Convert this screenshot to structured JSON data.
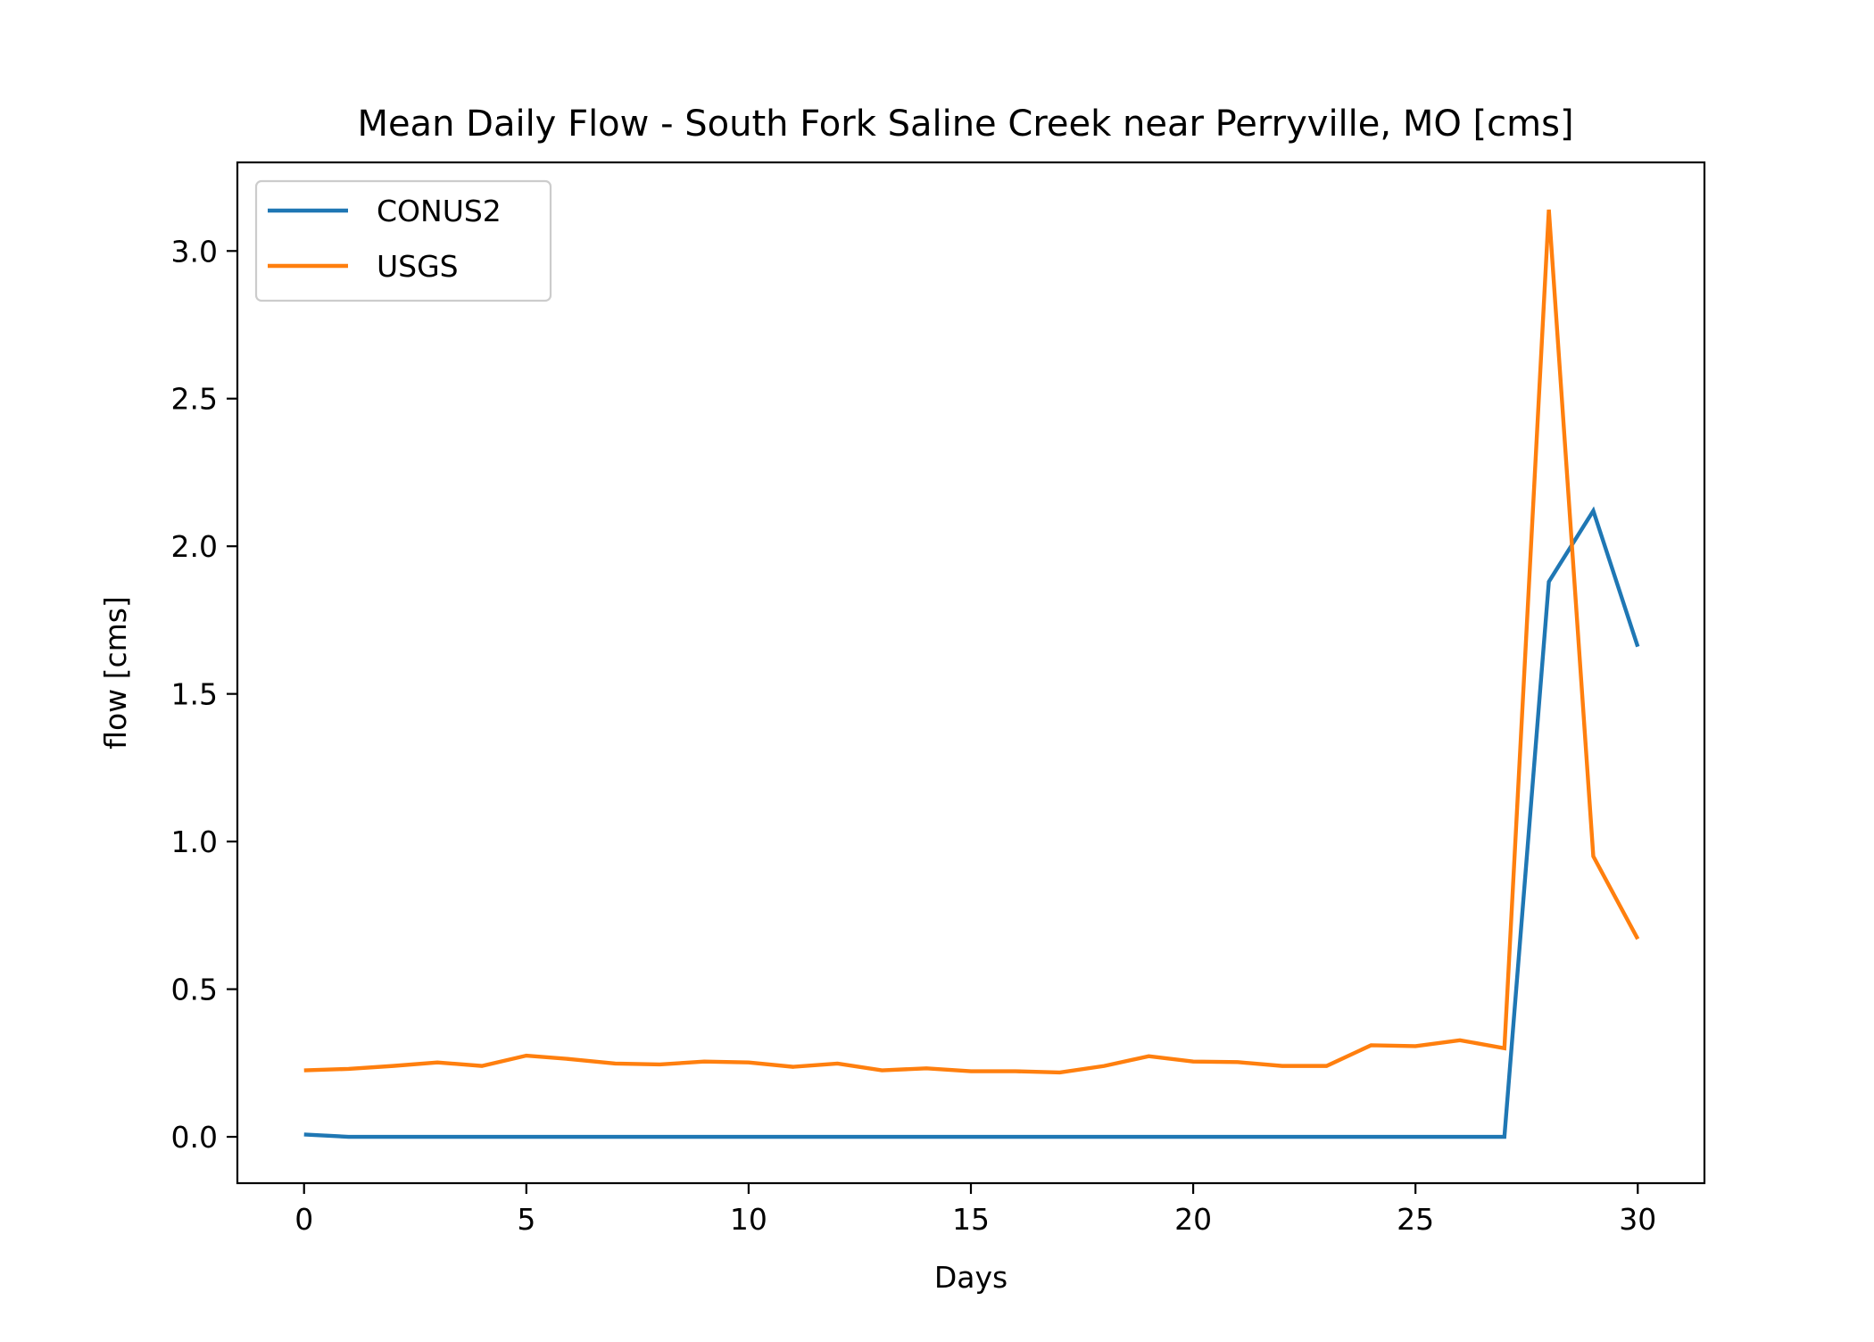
{
  "chart_data": {
    "type": "line",
    "title": "Mean Daily Flow - South Fork Saline Creek near Perryville, MO [cms]",
    "xlabel": "Days",
    "ylabel": "flow [cms]",
    "xlim": [
      -1.5,
      31.5
    ],
    "ylim": [
      -0.157,
      3.3
    ],
    "xticks": [
      0,
      5,
      10,
      15,
      20,
      25,
      30
    ],
    "xtick_labels": [
      "0",
      "5",
      "10",
      "15",
      "20",
      "25",
      "30"
    ],
    "yticks": [
      0.0,
      0.5,
      1.0,
      1.5,
      2.0,
      2.5,
      3.0
    ],
    "ytick_labels": [
      "0.0",
      "0.5",
      "1.0",
      "1.5",
      "2.0",
      "2.5",
      "3.0"
    ],
    "grid": false,
    "legend_position": "upper-left",
    "x": [
      0,
      1,
      2,
      3,
      4,
      5,
      6,
      7,
      8,
      9,
      10,
      11,
      12,
      13,
      14,
      15,
      16,
      17,
      18,
      19,
      20,
      21,
      22,
      23,
      24,
      25,
      26,
      27,
      28,
      29,
      30
    ],
    "series": [
      {
        "name": "CONUS2",
        "color": "#1f77b4",
        "values": [
          0.008,
          0.0,
          0.0,
          0.0,
          0.0,
          0.0,
          0.0,
          0.0,
          0.0,
          0.0,
          0.0,
          0.0,
          0.0,
          0.0,
          0.0,
          0.0,
          0.0,
          0.0,
          0.0,
          0.0,
          0.0,
          0.0,
          0.0,
          0.0,
          0.0,
          0.0,
          0.0,
          0.0,
          1.88,
          2.12,
          1.66
        ]
      },
      {
        "name": "USGS",
        "color": "#ff7f0e",
        "values": [
          0.225,
          0.23,
          0.24,
          0.252,
          0.24,
          0.275,
          0.263,
          0.248,
          0.245,
          0.255,
          0.252,
          0.237,
          0.248,
          0.225,
          0.232,
          0.222,
          0.222,
          0.218,
          0.24,
          0.273,
          0.255,
          0.253,
          0.24,
          0.24,
          0.31,
          0.307,
          0.327,
          0.3,
          3.14,
          0.95,
          0.67
        ]
      }
    ]
  }
}
